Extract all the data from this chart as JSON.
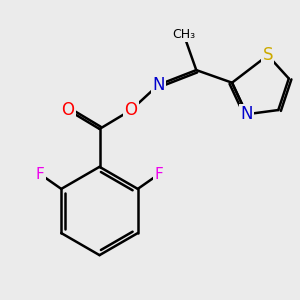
{
  "bg_color": "#ebebeb",
  "bond_color": "#000000",
  "bond_width": 1.8,
  "atom_colors": {
    "O": "#ff0000",
    "N": "#0000cc",
    "S": "#ccaa00",
    "F": "#ee00ee",
    "C": "#000000"
  },
  "font_size": 11,
  "fig_size": [
    3.0,
    3.0
  ],
  "dpi": 100
}
